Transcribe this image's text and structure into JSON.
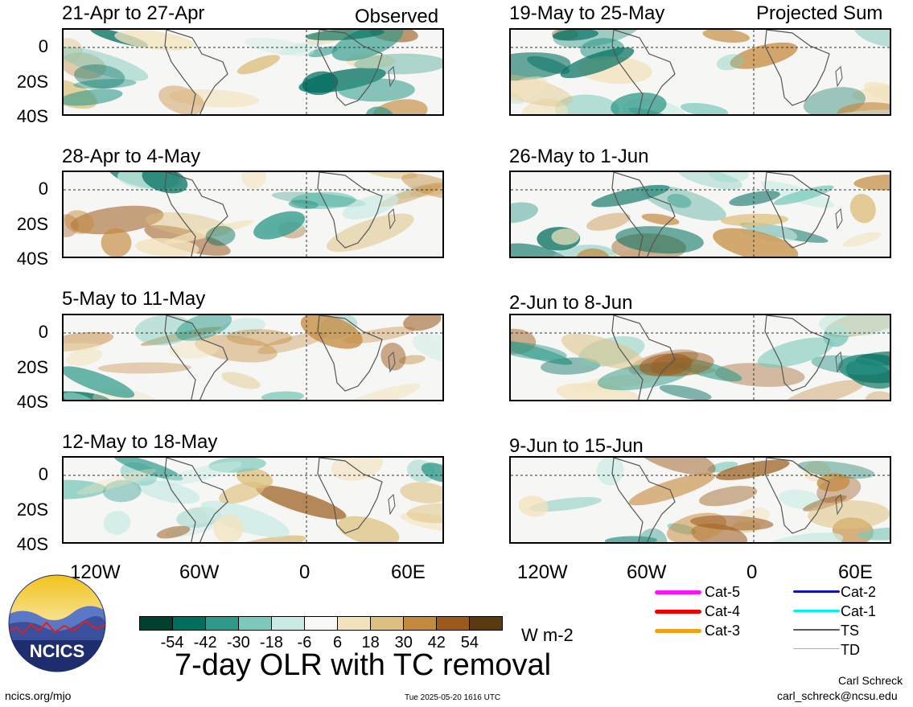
{
  "panels": [
    {
      "title": "21-Apr to 27-Apr",
      "tag": "Observed"
    },
    {
      "title": "28-Apr to 4-May",
      "tag": ""
    },
    {
      "title": "5-May to 11-May",
      "tag": ""
    },
    {
      "title": "12-May to 18-May",
      "tag": ""
    },
    {
      "title": "19-May to 25-May",
      "tag": "Projected Sum"
    },
    {
      "title": "26-May to 1-Jun",
      "tag": ""
    },
    {
      "title": "2-Jun to 8-Jun",
      "tag": ""
    },
    {
      "title": "9-Jun to 15-Jun",
      "tag": ""
    }
  ],
  "y_ticks": [
    "0",
    "20S",
    "40S"
  ],
  "x_ticks": [
    "120W",
    "60W",
    "0",
    "60E"
  ],
  "colorbar": {
    "colors": [
      "#00402e",
      "#006e5e",
      "#2f9a8a",
      "#7cc9bb",
      "#c8ebe3",
      "#f8f8f6",
      "#f3e3bd",
      "#ddc07e",
      "#c48a3e",
      "#9a5a1b",
      "#5b3a10"
    ],
    "ticks": [
      "-54",
      "-42",
      "-30",
      "-18",
      "-6",
      "6",
      "18",
      "30",
      "42",
      "54"
    ],
    "units": "W m-2"
  },
  "legend": [
    {
      "label": "Cat-5",
      "color": "#ff10ff"
    },
    {
      "label": "Cat-4",
      "color": "#f00000"
    },
    {
      "label": "Cat-3",
      "color": "#f4a013"
    },
    {
      "label": "Cat-2",
      "color": "#1010c8"
    },
    {
      "label": "Cat-1",
      "color": "#00f0f0"
    },
    {
      "label": "TS",
      "color": "#5a5a5a"
    },
    {
      "label": "TD",
      "color": "#b0b0b0"
    }
  ],
  "main_title": "7-day OLR with TC removal",
  "logo_text": "NCICS",
  "footer": {
    "left": "ncics.org/mjo",
    "center": "Tue 2025-05-20 1616 UTC",
    "author": "Carl Schreck",
    "email": "carl_schreck@ncsu.edu"
  }
}
